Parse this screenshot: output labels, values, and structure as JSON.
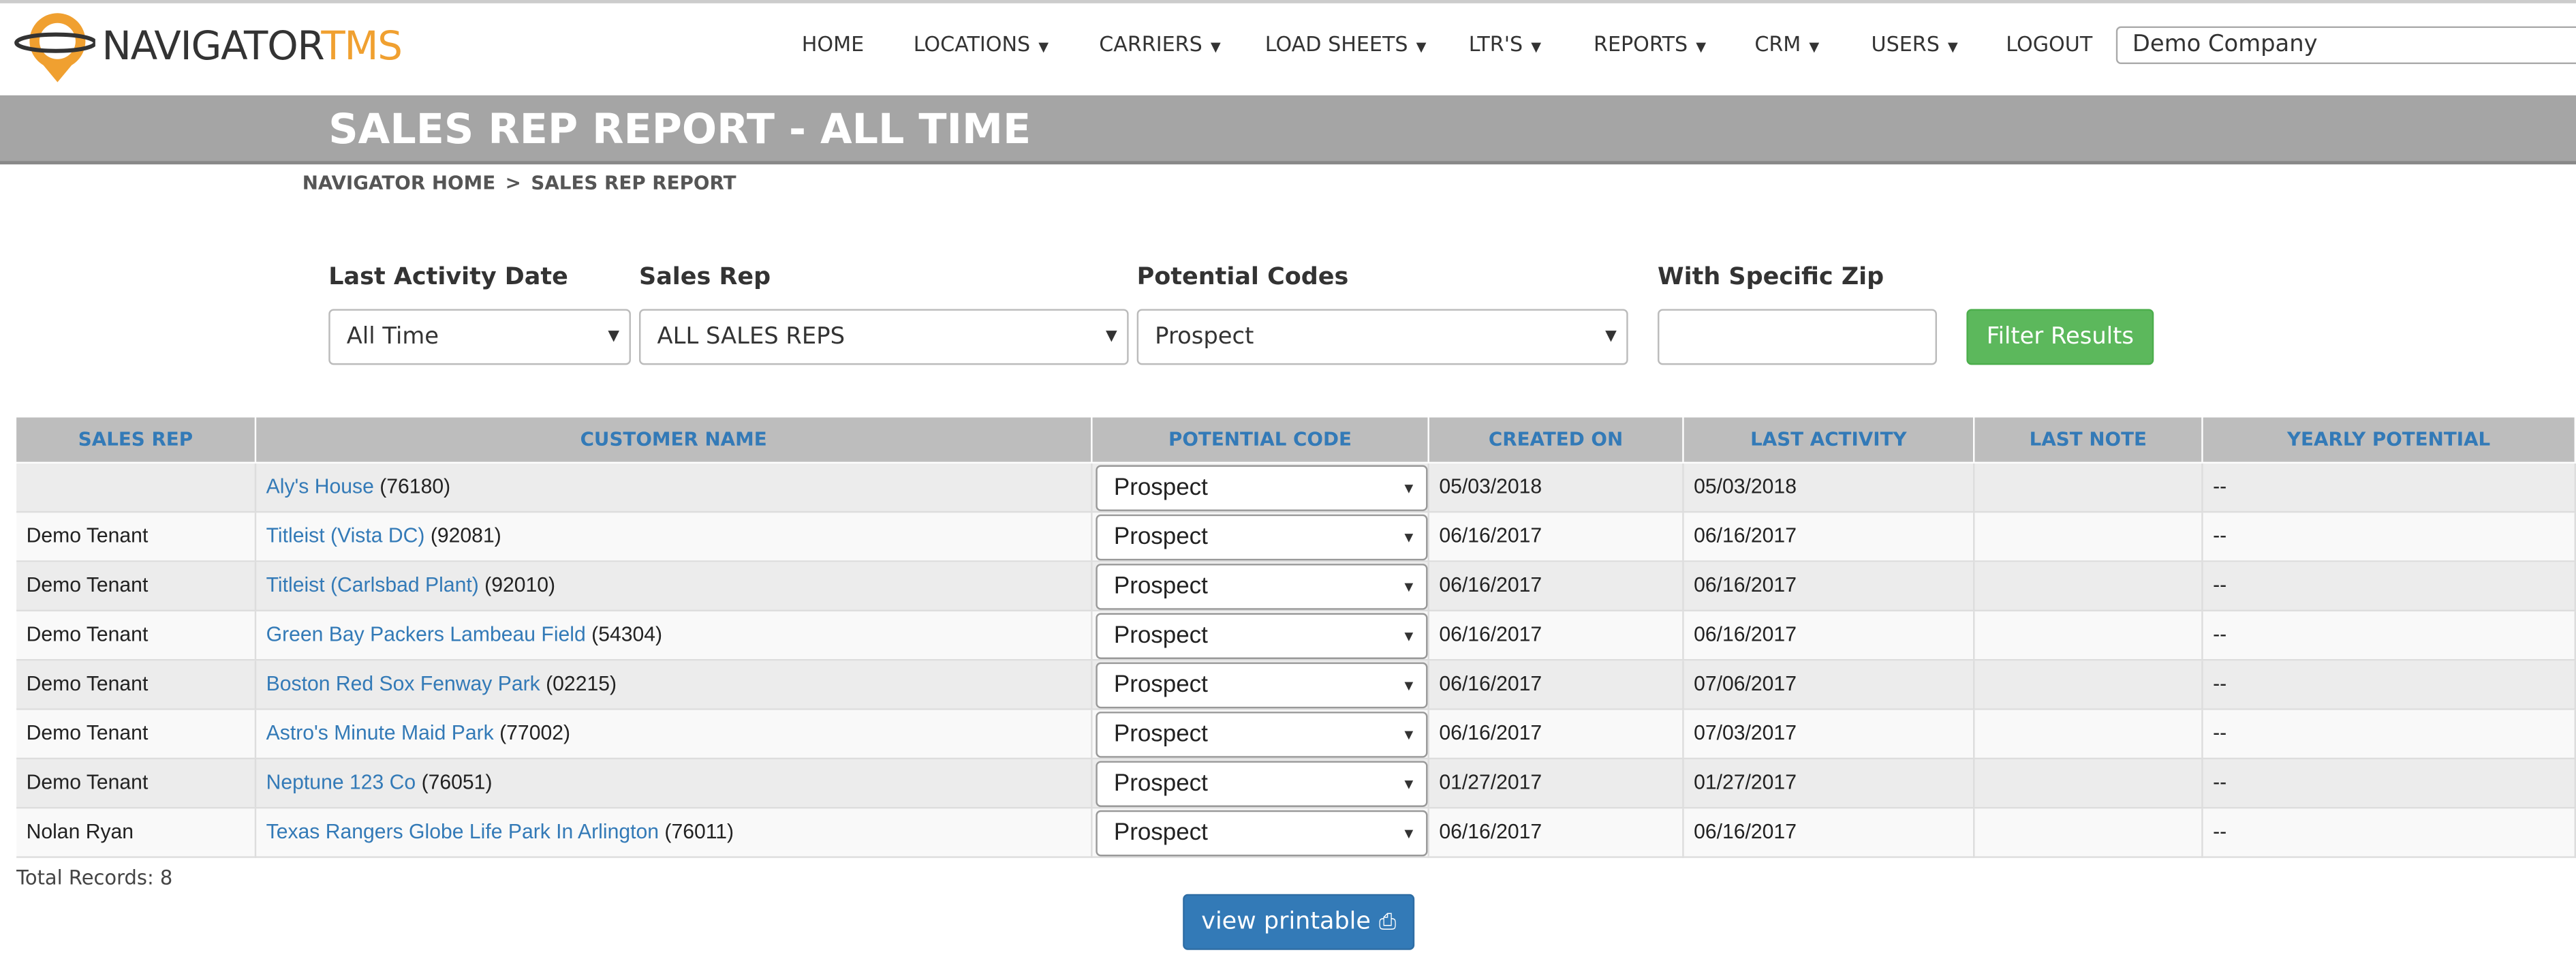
{
  "header": {
    "logo_main": "NAVIGATOR",
    "logo_accent": "TMS",
    "nav": [
      {
        "label": "HOME",
        "dropdown": false
      },
      {
        "label": "LOCATIONS",
        "dropdown": true
      },
      {
        "label": "CARRIERS",
        "dropdown": true
      },
      {
        "label": "LOAD SHEETS",
        "dropdown": true
      },
      {
        "label": "LTR'S",
        "dropdown": true
      },
      {
        "label": "REPORTS",
        "dropdown": true
      },
      {
        "label": "CRM",
        "dropdown": true
      },
      {
        "label": "USERS",
        "dropdown": true
      },
      {
        "label": "LOGOUT",
        "dropdown": false
      }
    ],
    "company": "Demo Company"
  },
  "page": {
    "title": "SALES REP REPORT - ALL TIME",
    "breadcrumb": [
      "NAVIGATOR HOME",
      "SALES REP REPORT"
    ]
  },
  "filters": [
    {
      "label": "Last Activity Date",
      "value": "All Time"
    },
    {
      "label": "Sales Rep",
      "value": "ALL SALES REPS"
    },
    {
      "label": "Potential Codes",
      "value": "Prospect"
    },
    {
      "label": "With Specific Zip"
    }
  ],
  "filter_button": "Filter Results",
  "table": {
    "headers": [
      "SALES REP",
      "CUSTOMER NAME",
      "POTENTIAL CODE",
      "CREATED ON",
      "LAST ACTIVITY",
      "LAST NOTE",
      "YEARLY POTENTIAL"
    ],
    "rows": [
      {
        "customer": "Aly's House",
        "zip": "(76180)",
        "code": "Prospect",
        "created": "05/03/2018",
        "last_activity": "05/03/2018",
        "yearly": "--"
      },
      {
        "rep": "Demo Tenant",
        "customer": "Titleist (Vista DC)",
        "zip": "(92081)",
        "code": "Prospect",
        "created": "06/16/2017",
        "last_activity": "06/16/2017",
        "yearly": "--"
      },
      {
        "rep": "Demo Tenant",
        "customer": "Titleist (Carlsbad Plant)",
        "zip": "(92010)",
        "code": "Prospect",
        "created": "06/16/2017",
        "last_activity": "06/16/2017",
        "yearly": "--"
      },
      {
        "rep": "Demo Tenant",
        "customer": "Green Bay Packers Lambeau Field",
        "zip": "(54304)",
        "code": "Prospect",
        "created": "06/16/2017",
        "last_activity": "06/16/2017",
        "yearly": "--"
      },
      {
        "rep": "Demo Tenant",
        "customer": "Boston Red Sox Fenway Park",
        "zip": "(02215)",
        "code": "Prospect",
        "created": "06/16/2017",
        "last_activity": "07/06/2017",
        "yearly": "--"
      },
      {
        "rep": "Demo Tenant",
        "customer": "Astro's Minute Maid Park",
        "zip": "(77002)",
        "code": "Prospect",
        "created": "06/16/2017",
        "last_activity": "07/03/2017",
        "yearly": "--"
      },
      {
        "rep": "Demo Tenant",
        "customer": "Neptune 123 Co",
        "zip": "(76051)",
        "code": "Prospect",
        "created": "01/27/2017",
        "last_activity": "01/27/2017",
        "yearly": "--"
      },
      {
        "rep": "Nolan Ryan",
        "customer": "Texas Rangers Globe Life Park In Arlington",
        "zip": "(76011)",
        "code": "Prospect",
        "created": "06/16/2017",
        "last_activity": "06/16/2017",
        "yearly": "--"
      }
    ]
  },
  "footer": {
    "total": "Total Records: 8",
    "printable": "view printable"
  }
}
